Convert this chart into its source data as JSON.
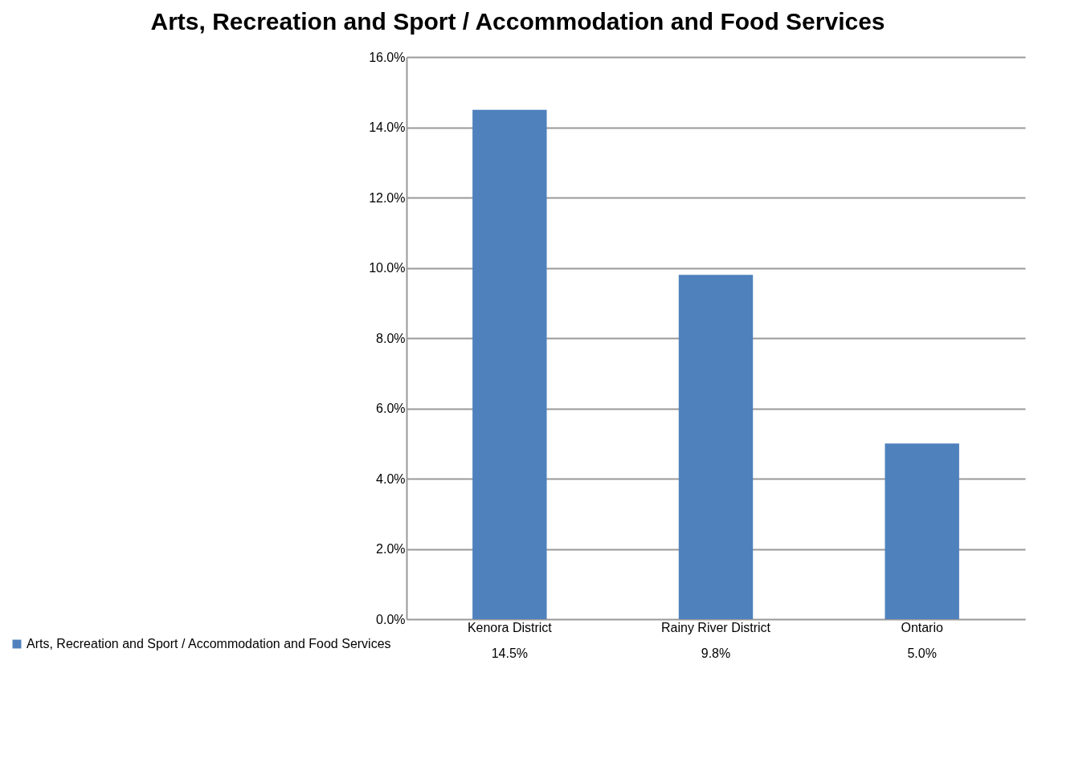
{
  "chart_data": {
    "type": "bar",
    "title": "Arts, Recreation and Sport / Accommodation and Food Services",
    "categories": [
      "Kenora District",
      "Rainy River District",
      "Ontario"
    ],
    "series": [
      {
        "name": "Arts, Recreation and Sport / Accommodation and Food Services",
        "color": "#4f81bd",
        "values": [
          14.5,
          9.8,
          5.0
        ],
        "value_labels": [
          "14.5%",
          "9.8%",
          "5.0%"
        ]
      }
    ],
    "ylim": [
      0,
      16
    ],
    "yticks": [
      {
        "value": 0,
        "label": "0.0%"
      },
      {
        "value": 2,
        "label": "2.0%"
      },
      {
        "value": 4,
        "label": "4.0%"
      },
      {
        "value": 6,
        "label": "6.0%"
      },
      {
        "value": 8,
        "label": "8.0%"
      },
      {
        "value": 10,
        "label": "10.0%"
      },
      {
        "value": 12,
        "label": "12.0%"
      },
      {
        "value": 14,
        "label": "14.0%"
      },
      {
        "value": 16,
        "label": "16.0%"
      }
    ],
    "grid": "y",
    "legend": "bottom left"
  }
}
